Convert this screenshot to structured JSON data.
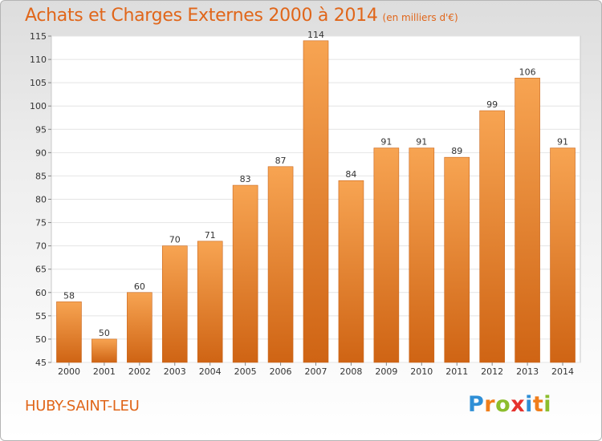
{
  "header": {
    "title": "Achats et Charges Externes 2000 à 2014",
    "unit": "(en milliers d'€)"
  },
  "footer": {
    "commune": "HUBY-SAINT-LEU",
    "logo_text": "Proxiti",
    "logo_letters": [
      {
        "ch": "P",
        "color": "#2f8fd6"
      },
      {
        "ch": "r",
        "color": "#f07e1b"
      },
      {
        "ch": "o",
        "color": "#8cbd2d"
      },
      {
        "ch": "x",
        "color": "#e5322d"
      },
      {
        "ch": "i",
        "color": "#2f8fd6"
      },
      {
        "ch": "t",
        "color": "#f07e1b"
      },
      {
        "ch": "i",
        "color": "#8cbd2d"
      }
    ]
  },
  "colors": {
    "accent": "#e0661a",
    "bar_top": "#f7a452",
    "bar_bottom": "#cf6414",
    "axis_text": "#333333",
    "grid": "#e4e4e4"
  },
  "chart_data": {
    "type": "bar",
    "categories": [
      "2000",
      "2001",
      "2002",
      "2003",
      "2004",
      "2005",
      "2006",
      "2007",
      "2008",
      "2009",
      "2010",
      "2011",
      "2012",
      "2013",
      "2014"
    ],
    "values": [
      58,
      50,
      60,
      70,
      71,
      83,
      87,
      114,
      84,
      91,
      91,
      89,
      99,
      106,
      91
    ],
    "ylim": [
      45,
      115
    ],
    "yticks": [
      45,
      50,
      55,
      60,
      65,
      70,
      75,
      80,
      85,
      90,
      95,
      100,
      105,
      110,
      115
    ],
    "grid": true,
    "data_labels": true
  }
}
